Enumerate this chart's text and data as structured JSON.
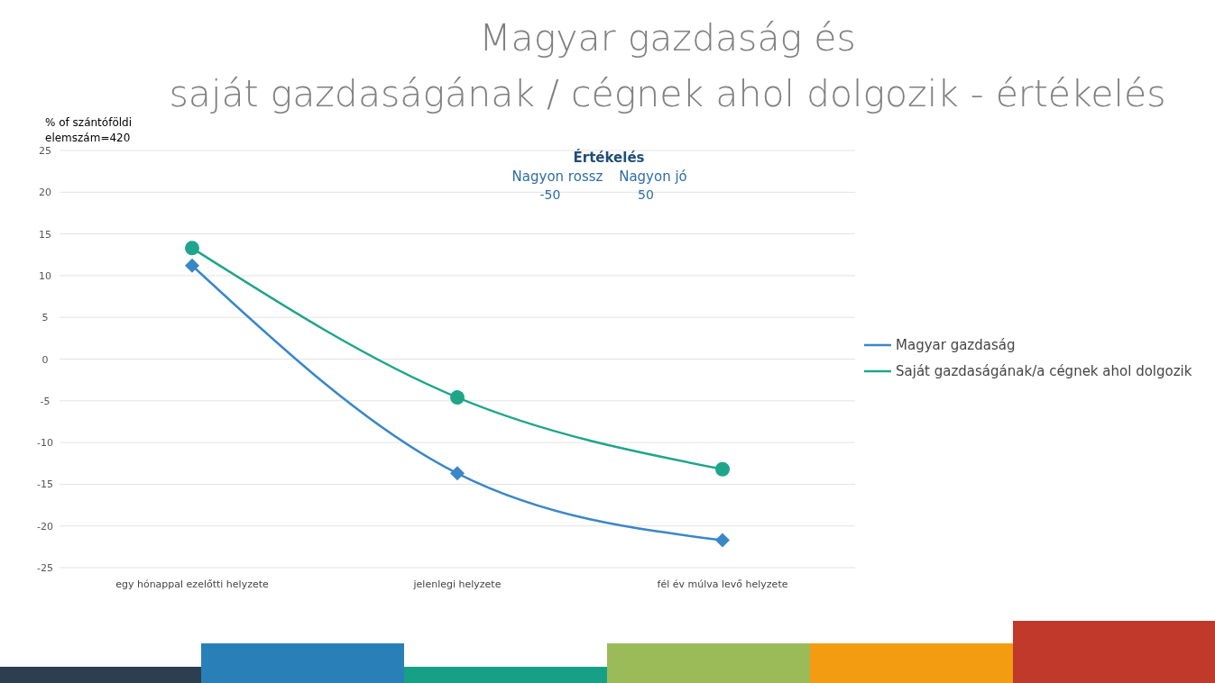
{
  "chart_data": {
    "type": "line",
    "title": "Magyar gazdaság és\nsaját gazdaságának / cégnek ahol dolgozik - értékelés",
    "categories": [
      "egy hónappal ezelőtti helyzete",
      "jelenlegi helyzete",
      "fél év múlva levő helyzete"
    ],
    "series": [
      {
        "name": "Magyar gazdaság",
        "color": "#3a87c8",
        "marker": "diamond",
        "values": [
          11.2,
          -13.7,
          -21.7
        ]
      },
      {
        "name": "Saját gazdaságának/a cégnek ahol dolgozik",
        "color": "#1fa58a",
        "marker": "circle",
        "values": [
          13.3,
          -4.6,
          -13.2
        ]
      }
    ],
    "ylim": [
      -25,
      25
    ],
    "yticks": [
      -25,
      -20,
      -15,
      -10,
      -5,
      0,
      5,
      10,
      15,
      20,
      25
    ],
    "grid": "y",
    "legend": "right",
    "line_style": "solid",
    "annotations": [
      "% of szántóföldi",
      "elemszám=420",
      "Értékelés",
      "Nagyon rossz",
      "-50",
      "Nagyon jó",
      "50"
    ]
  }
}
